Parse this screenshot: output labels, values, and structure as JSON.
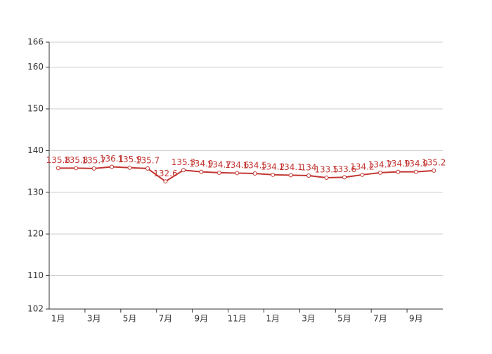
{
  "chart_data": {
    "type": "line",
    "categories": [
      "1月",
      null,
      "3月",
      null,
      "5月",
      null,
      "7月",
      null,
      "9月",
      null,
      "11月",
      null,
      "1月",
      null,
      "3月",
      null,
      "5月",
      null,
      "7月",
      null,
      "9月",
      null
    ],
    "values": [
      135.8,
      135.8,
      135.7,
      136.1,
      135.9,
      135.7,
      132.6,
      135.3,
      134.9,
      134.7,
      134.6,
      134.5,
      134.2,
      134.1,
      134,
      133.5,
      133.6,
      134.2,
      134.7,
      134.9,
      134.9,
      135.2
    ],
    "color": "#c23531",
    "ylim": [
      102,
      166
    ],
    "yticks": [
      102,
      110,
      120,
      130,
      140,
      150,
      160,
      166
    ],
    "grid": true
  }
}
